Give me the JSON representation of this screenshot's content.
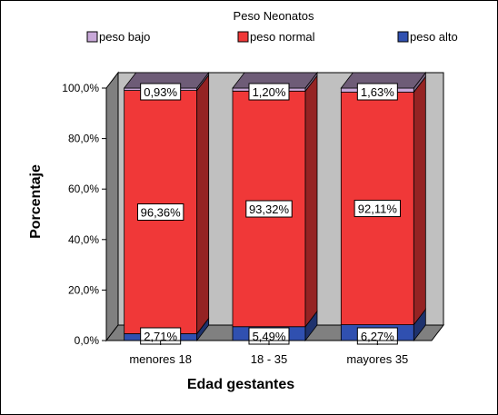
{
  "chart_data": {
    "type": "bar",
    "stacked": true,
    "percent_stacked": true,
    "three_d": true,
    "title": "",
    "legend": {
      "title": "Peso Neonatos",
      "placement": "top",
      "items": [
        {
          "name": "peso bajo",
          "color": "#c8a8d8"
        },
        {
          "name": "peso normal",
          "color": "#f03838"
        },
        {
          "name": "peso alto",
          "color": "#3050b0"
        }
      ]
    },
    "xlabel": "Edad gestantes",
    "ylabel": "Porcentaje",
    "categories": [
      "menores 18",
      "18 - 35",
      "mayores 35"
    ],
    "series": [
      {
        "name": "peso alto",
        "values": [
          2.71,
          5.49,
          6.27
        ],
        "labels": [
          "2,71%",
          "5,49%",
          "6,27%"
        ]
      },
      {
        "name": "peso normal",
        "values": [
          96.36,
          93.32,
          92.11
        ],
        "labels": [
          "96,36%",
          "93,32%",
          "92,11%"
        ]
      },
      {
        "name": "peso bajo",
        "values": [
          0.93,
          1.2,
          1.63
        ],
        "labels": [
          "0,93%",
          "1,20%",
          "1,63%"
        ]
      }
    ],
    "ylim": [
      0,
      100
    ],
    "yticks": [
      0,
      20,
      40,
      60,
      80,
      100
    ],
    "ytick_labels": [
      "0,0%",
      "20,0%",
      "40,0%",
      "60,0%",
      "80,0%",
      "100,0%"
    ],
    "grid": false
  }
}
